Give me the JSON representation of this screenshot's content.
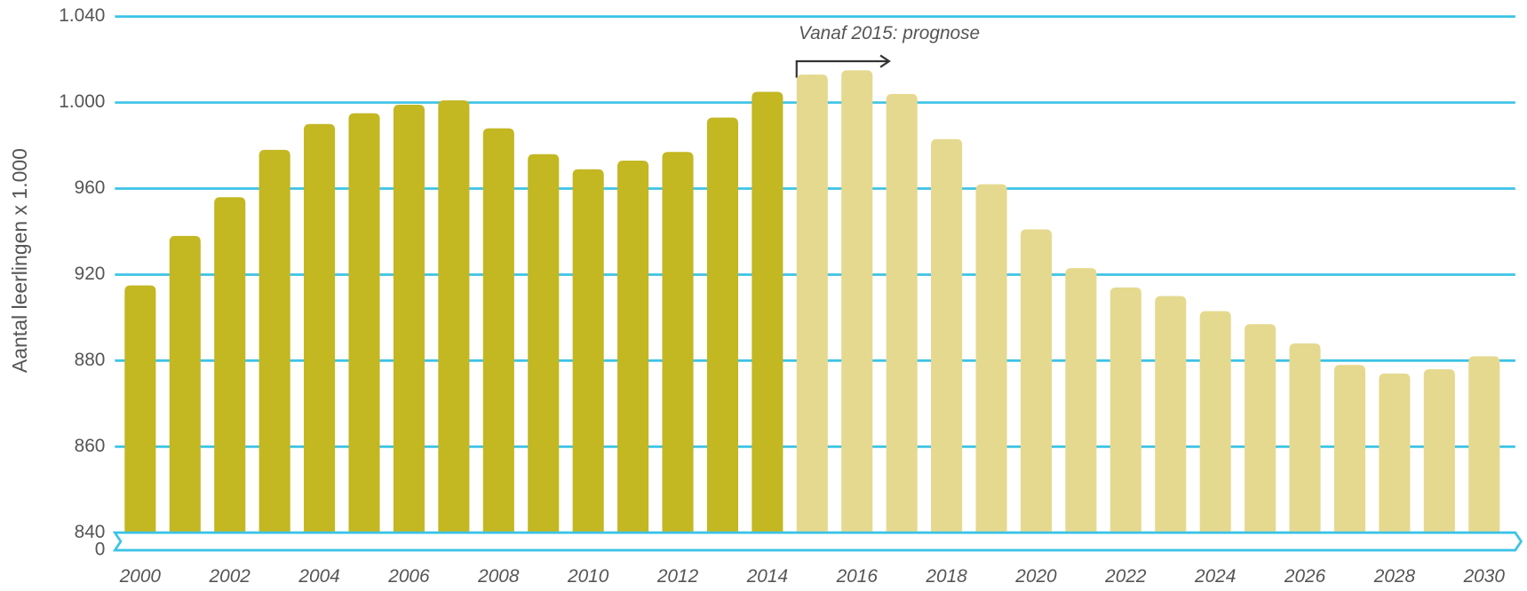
{
  "chart_data": {
    "type": "bar",
    "y_axis_label": "Aantal leerlingen x 1.000",
    "annotation": "Vanaf 2015: prognose",
    "categories": [
      "2000",
      null,
      "2002",
      null,
      "2004",
      null,
      "2006",
      null,
      "2008",
      null,
      "2010",
      null,
      "2012",
      null,
      "2014",
      null,
      "2016",
      null,
      "2018",
      null,
      "2020",
      null,
      "2022",
      null,
      "2024",
      null,
      "2026",
      null,
      "2028",
      null,
      "2030"
    ],
    "series": [
      {
        "color": "#c3b722",
        "values": [
          915,
          938,
          956,
          978,
          990,
          995,
          999,
          1001,
          988,
          976,
          969,
          973,
          977,
          993,
          1005,
          null,
          null,
          null,
          null,
          null,
          null,
          null,
          null,
          null,
          null,
          null,
          null,
          null,
          null,
          null,
          null
        ]
      },
      {
        "color": "#e5d98f",
        "values": [
          null,
          null,
          null,
          null,
          null,
          null,
          null,
          null,
          null,
          null,
          null,
          null,
          null,
          null,
          null,
          1013,
          1015,
          1004,
          983,
          962,
          941,
          923,
          914,
          910,
          903,
          897,
          888,
          879,
          877,
          878,
          882
        ]
      }
    ],
    "ylim": [
      0,
      1040
    ],
    "yticks": [
      0,
      840,
      860,
      880,
      920,
      960,
      {
        "value": 1000,
        "label": "1.000"
      },
      {
        "value": 1040,
        "label": "1.040"
      }
    ],
    "grid": true
  }
}
